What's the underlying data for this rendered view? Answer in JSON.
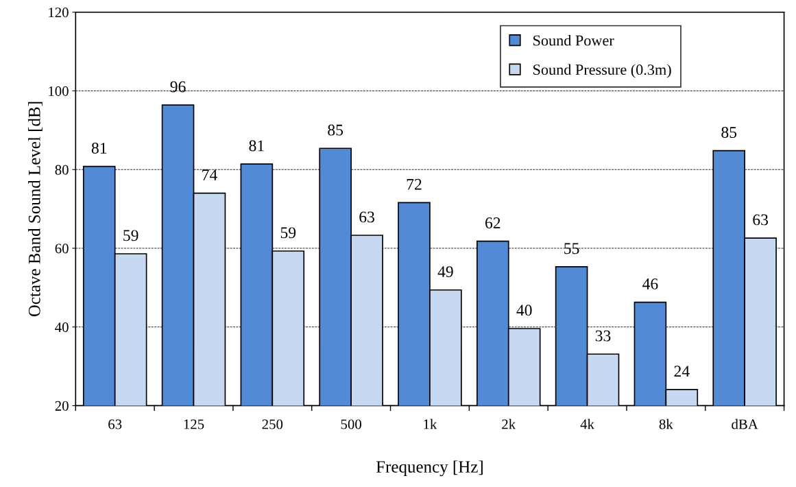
{
  "chart_data": {
    "type": "bar",
    "xlabel": "Frequency [Hz]",
    "ylabel": "Octave Band Sound Level [dB]",
    "categories": [
      "63",
      "125",
      "250",
      "500",
      "1k",
      "2k",
      "4k",
      "8k",
      "dBA"
    ],
    "series": [
      {
        "name": "Sound Power",
        "color": "#528ad6",
        "values": [
          80.8,
          96.4,
          81.4,
          85.4,
          71.6,
          61.8,
          55.3,
          46.3,
          84.8
        ],
        "value_labels": [
          "81",
          "96",
          "81",
          "85",
          "72",
          "62",
          "55",
          "46",
          "85"
        ]
      },
      {
        "name": "Sound Pressure (0.3m)",
        "color": "#c6d9f0",
        "values": [
          58.6,
          74.0,
          59.3,
          63.3,
          49.4,
          39.6,
          33.1,
          24.1,
          62.6
        ],
        "value_labels": [
          "59",
          "74",
          "59",
          "63",
          "49",
          "40",
          "33",
          "24",
          "63"
        ]
      }
    ],
    "ylim": [
      20,
      120
    ],
    "yticks": [
      20,
      40,
      60,
      80,
      100,
      120
    ],
    "grid": "y",
    "legend": "top right"
  }
}
